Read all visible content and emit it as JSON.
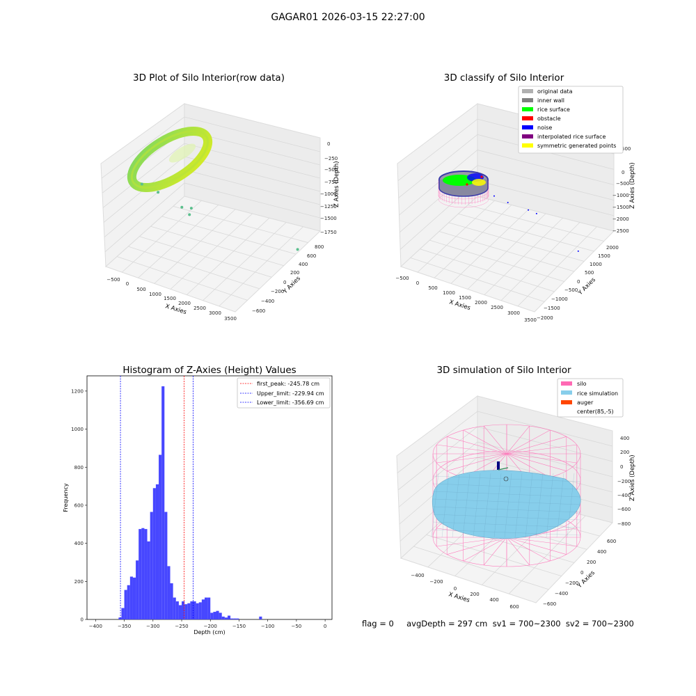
{
  "suptitle": "GAGAR01 2026-03-15 22:27:00",
  "footer": "flag = 0     avgDepth = 297 cm  sv1 = 700~2300  sv2 = 700~2300",
  "colors": {
    "point_gradient": [
      "#7fd860",
      "#d9ec22"
    ],
    "outlier": "#5bbf8d",
    "grey": "#b0b0b0",
    "darkgrey": "#808080",
    "green": "#00ff00",
    "red": "#ff0000",
    "blue": "#0000ff",
    "purple": "#800080",
    "yellow": "#ffff00",
    "pink": "#ff69b4",
    "skyblue": "#87ceeb",
    "orange": "#ff4500",
    "hist_bar": "#4747ff",
    "first_peak_line": "#ff0000",
    "limit_line": "#0000ff"
  },
  "chart_data": [
    {
      "type": "scatter3d",
      "title": "3D Plot of Silo Interior(row data)",
      "xlabel": "X Axies",
      "ylabel": "Y Axies",
      "zlabel": "Z Axies (Depth)",
      "xticks": [
        "−500",
        "0",
        "500",
        "1000",
        "1500",
        "2000",
        "2500",
        "3000",
        "3500"
      ],
      "yticks": [
        "800",
        "600",
        "400",
        "200",
        "0",
        "−200",
        "−400",
        "−600"
      ],
      "zticks": [
        "0",
        "−250",
        "−500",
        "−750",
        "−1000",
        "−1250",
        "−1500",
        "−1750"
      ],
      "xlim": [
        -600,
        3600
      ],
      "ylim": [
        -650,
        850
      ],
      "zlim": [
        -1850,
        50
      ],
      "outliers": [
        {
          "x": 450,
          "y": 700,
          "z": -250
        },
        {
          "x": 700,
          "y": 550,
          "z": -480
        },
        {
          "x": 1100,
          "y": 350,
          "z": -850
        },
        {
          "x": 1250,
          "y": 300,
          "z": -1000
        },
        {
          "x": 1050,
          "y": 150,
          "z": -1050
        },
        {
          "x": 3500,
          "y": -400,
          "z": -1800
        }
      ]
    },
    {
      "type": "scatter3d",
      "title": "3D classify of Silo Interior",
      "xlabel": "X Axies",
      "ylabel": "Y Axies",
      "zlabel": "Z Axies (Depth)",
      "xticks": [
        "−500",
        "0",
        "500",
        "1000",
        "1500",
        "2000",
        "2500",
        "3000",
        "3500"
      ],
      "yticks": [
        "2000",
        "1500",
        "1000",
        "500",
        "0",
        "−500",
        "−1000",
        "−1500",
        "−2000"
      ],
      "zticks": [
        "500",
        "0",
        "−500",
        "−1000",
        "−1500",
        "−2000",
        "−2500"
      ],
      "legend": [
        {
          "label": "original data",
          "color": "#b0b0b0"
        },
        {
          "label": "inner wall",
          "color": "#808080"
        },
        {
          "label": "rice surface",
          "color": "#00ff00"
        },
        {
          "label": "obstacle",
          "color": "#ff0000"
        },
        {
          "label": "noise",
          "color": "#0000ff"
        },
        {
          "label": "interpolated rice surface",
          "color": "#800080"
        },
        {
          "label": "symmetric generated points",
          "color": "#ffff00"
        }
      ],
      "noise_points": [
        {
          "x": 1300,
          "y": 200,
          "z": -850
        },
        {
          "x": 1700,
          "y": 150,
          "z": -950
        },
        {
          "x": 2200,
          "y": -100,
          "z": -1150
        },
        {
          "x": 2400,
          "y": -200,
          "z": -1250
        },
        {
          "x": 3400,
          "y": -700,
          "z": -2400
        }
      ]
    },
    {
      "type": "bar",
      "title": "Histogram of Z-Axies (Height) Values",
      "xlabel": "Depth (cm)",
      "ylabel": "Frequency",
      "xlim": [
        -415,
        12
      ],
      "ylim": [
        0,
        1280
      ],
      "xticks": [
        -400,
        -350,
        -300,
        -250,
        -200,
        -150,
        -100,
        -50,
        0
      ],
      "yticks": [
        0,
        200,
        400,
        600,
        800,
        1000,
        1200
      ],
      "tick_labels_x": [
        "−400",
        "−350",
        "−300",
        "−250",
        "−200",
        "−150",
        "−100",
        "−50",
        "0"
      ],
      "bin_start": -360,
      "bin_width": 5,
      "values": [
        10,
        60,
        155,
        180,
        225,
        220,
        310,
        475,
        480,
        475,
        410,
        565,
        690,
        710,
        865,
        1225,
        565,
        280,
        190,
        115,
        95,
        75,
        95,
        80,
        85,
        95,
        95,
        85,
        90,
        105,
        115,
        115,
        35,
        40,
        45,
        35,
        15,
        10,
        20,
        5,
        5,
        5,
        0,
        0,
        0,
        0,
        0,
        0,
        0,
        15
      ],
      "vlines": [
        {
          "label": "first_peak: -245.78 cm",
          "x": -245.78,
          "color": "#ff0000"
        },
        {
          "label": "Upper_limit: -229.94 cm",
          "x": -229.94,
          "color": "#0000ff"
        },
        {
          "label": "Lower_limit: -356.69 cm",
          "x": -356.69,
          "color": "#0000ff"
        }
      ]
    },
    {
      "type": "surface3d",
      "title": "3D simulation of Silo Interior",
      "xlabel": "X Axies",
      "ylabel": "Y Axies",
      "zlabel": "Z Axies (Depth)",
      "xticks": [
        "−400",
        "−200",
        "0",
        "200",
        "400",
        "600"
      ],
      "yticks": [
        "600",
        "400",
        "200",
        "0",
        "−200",
        "−400",
        "−600"
      ],
      "zticks": [
        "400",
        "200",
        "0",
        "−200",
        "−400",
        "−600",
        "−800"
      ],
      "legend": [
        {
          "label": "silo",
          "color": "#ff69b4"
        },
        {
          "label": "rice simulation",
          "color": "#87ceeb"
        },
        {
          "label": "auger",
          "color": "#ff4500"
        },
        {
          "label": "center(85,-5)",
          "color": ""
        }
      ]
    }
  ]
}
